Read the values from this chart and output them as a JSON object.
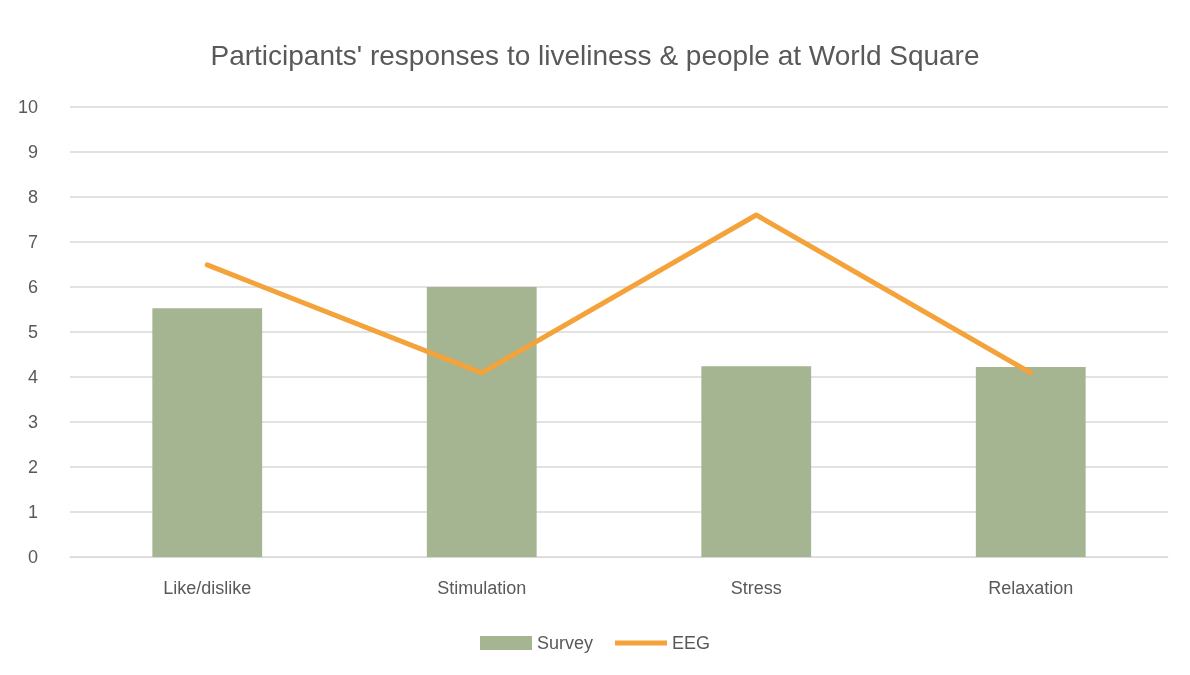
{
  "chart_data": {
    "type": "bar",
    "title": "Participants' responses to liveliness & people at World Square",
    "categories": [
      "Like/dislike",
      "Stimulation",
      "Stress",
      "Relaxation"
    ],
    "series": [
      {
        "name": "Survey",
        "color": "#a5b592",
        "values": [
          5.53,
          6.0,
          4.24,
          4.22
        ]
      },
      {
        "name": "EEG",
        "type": "line",
        "color": "#f4a23a",
        "values": [
          6.49,
          4.09,
          7.6,
          4.09
        ]
      }
    ],
    "ylim": [
      0,
      10
    ],
    "yticks": [
      0,
      1,
      2,
      3,
      4,
      5,
      6,
      7,
      8,
      9,
      10
    ],
    "grid": "y",
    "legend": "bottom",
    "marker": "none"
  }
}
